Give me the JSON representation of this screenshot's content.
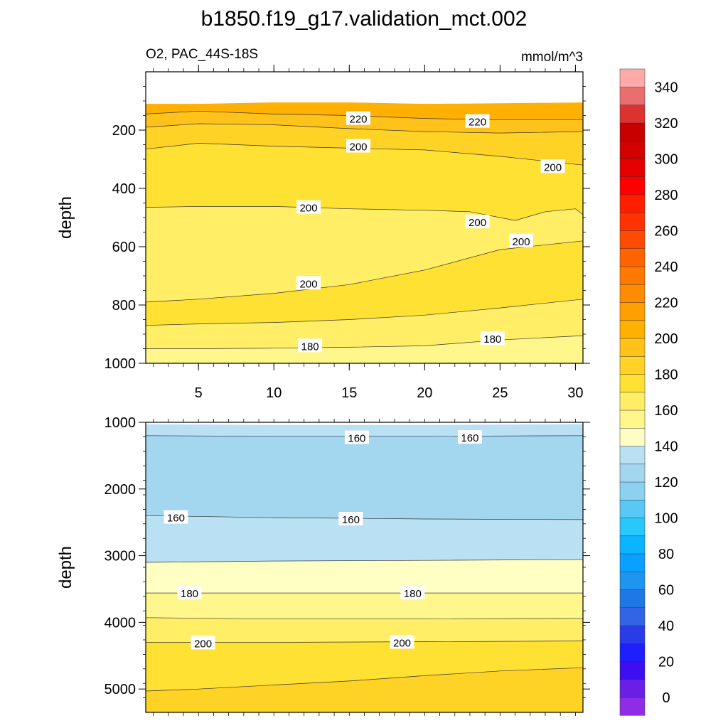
{
  "title": "b1850.f19_g17.validation_mct.002",
  "panel_left_label": "O2, PAC_44S-18S",
  "panel_right_label": "mmol/m^3",
  "chart_data": [
    {
      "type": "contour",
      "name": "upper-panel",
      "xlabel": "",
      "ylabel": "depth",
      "xlim": [
        1.5,
        30.5
      ],
      "ylim": [
        0,
        1000
      ],
      "x_ticks": [
        5,
        10,
        15,
        20,
        25,
        30
      ],
      "y_ticks": [
        200,
        400,
        600,
        800,
        1000
      ],
      "x_tick_labels": [
        "5",
        "10",
        "15",
        "20",
        "25",
        "30"
      ],
      "y_tick_labels": [
        "200",
        "400",
        "600",
        "800",
        "1000"
      ],
      "bands": [
        {
          "level": 230,
          "color": "#ffb000",
          "boundary": [
            [
              1.5,
              110
            ],
            [
              5,
              110
            ],
            [
              10,
              105
            ],
            [
              15,
              105
            ],
            [
              20,
              110
            ],
            [
              25,
              108
            ],
            [
              30.5,
              105
            ]
          ]
        },
        {
          "level": 220,
          "color": "#ffc21a",
          "boundary": [
            [
              1.5,
              145
            ],
            [
              5,
              135
            ],
            [
              10,
              145
            ],
            [
              15,
              150
            ],
            [
              20,
              160
            ],
            [
              25,
              165
            ],
            [
              30.5,
              165
            ]
          ]
        },
        {
          "level": 210,
          "color": "#ffd326",
          "boundary": [
            [
              1.5,
              190
            ],
            [
              5,
              178
            ],
            [
              10,
              182
            ],
            [
              15,
              195
            ],
            [
              20,
              205
            ],
            [
              25,
              210
            ],
            [
              30.5,
              205
            ]
          ]
        },
        {
          "level": 200,
          "color": "#ffe133",
          "boundary": [
            [
              1.5,
              265
            ],
            [
              5,
              245
            ],
            [
              10,
              255
            ],
            [
              15,
              262
            ],
            [
              20,
              268
            ],
            [
              25,
              290
            ],
            [
              30.5,
              320
            ]
          ]
        },
        {
          "level": 195,
          "color": "#ffee66",
          "boundary": [
            [
              1.5,
              465
            ],
            [
              5,
              462
            ],
            [
              10,
              462
            ],
            [
              15,
              470
            ],
            [
              20,
              475
            ],
            [
              23,
              480
            ],
            [
              26,
              510
            ],
            [
              28,
              480
            ],
            [
              30,
              470
            ],
            [
              30.5,
              490
            ]
          ]
        },
        {
          "level": 200,
          "color": "#ffe133",
          "boundary": [
            [
              1.5,
              790
            ],
            [
              5,
              780
            ],
            [
              10,
              760
            ],
            [
              15,
              730
            ],
            [
              20,
              680
            ],
            [
              25,
              610
            ],
            [
              30.5,
              580
            ]
          ]
        },
        {
          "level": 190,
          "color": "#ffee66",
          "boundary": [
            [
              1.5,
              870
            ],
            [
              5,
              865
            ],
            [
              10,
              860
            ],
            [
              15,
              850
            ],
            [
              20,
              835
            ],
            [
              25,
              810
            ],
            [
              30.5,
              780
            ]
          ]
        },
        {
          "level": 185,
          "color": "#fff78c",
          "boundary": [
            [
              1.5,
              950
            ],
            [
              5,
              950
            ],
            [
              10,
              948
            ],
            [
              15,
              945
            ],
            [
              20,
              940
            ],
            [
              25,
              920
            ],
            [
              30.5,
              905
            ]
          ]
        },
        {
          "level": 180,
          "color": "#ffffc4",
          "boundary": [
            [
              1.5,
              1000
            ],
            [
              30.5,
              1000
            ]
          ]
        }
      ],
      "contour_labels": [
        {
          "text": "220",
          "x": 15.6,
          "y": 160
        },
        {
          "text": "220",
          "x": 23.5,
          "y": 170
        },
        {
          "text": "200",
          "x": 15.6,
          "y": 255
        },
        {
          "text": "200",
          "x": 28.5,
          "y": 325
        },
        {
          "text": "200",
          "x": 12.3,
          "y": 465
        },
        {
          "text": "200",
          "x": 23.5,
          "y": 515
        },
        {
          "text": "200",
          "x": 26.4,
          "y": 580
        },
        {
          "text": "200",
          "x": 12.3,
          "y": 725
        },
        {
          "text": "180",
          "x": 12.4,
          "y": 940
        },
        {
          "text": "180",
          "x": 24.5,
          "y": 915
        }
      ]
    },
    {
      "type": "contour",
      "name": "lower-panel",
      "xlabel": "",
      "ylabel": "depth",
      "xlim": [
        1.5,
        30.5
      ],
      "ylim": [
        1000,
        5350
      ],
      "y_ticks": [
        1000,
        2000,
        3000,
        4000,
        5000
      ],
      "y_tick_labels": [
        "1000",
        "2000",
        "3000",
        "4000",
        "5000"
      ],
      "bands": [
        {
          "level": 165,
          "color": "#b9e1f3",
          "boundary": [
            [
              1.5,
              1030
            ],
            [
              10,
              1040
            ],
            [
              20,
              1040
            ],
            [
              30.5,
              1030
            ]
          ]
        },
        {
          "level": 155,
          "color": "#a3d6ef",
          "boundary": [
            [
              1.5,
              1200
            ],
            [
              10,
              1210
            ],
            [
              20,
              1210
            ],
            [
              30.5,
              1200
            ]
          ]
        },
        {
          "level": 165,
          "color": "#b9e1f3",
          "boundary": [
            [
              1.5,
              2400
            ],
            [
              10,
              2430
            ],
            [
              20,
              2450
            ],
            [
              30.5,
              2460
            ]
          ]
        },
        {
          "level": 180,
          "color": "#ffffc4",
          "boundary": [
            [
              1.5,
              3100
            ],
            [
              10,
              3080
            ],
            [
              20,
              3070
            ],
            [
              30.5,
              3060
            ]
          ]
        },
        {
          "level": 185,
          "color": "#fff78c",
          "boundary": [
            [
              1.5,
              3560
            ],
            [
              10,
              3560
            ],
            [
              20,
              3560
            ],
            [
              30.5,
              3560
            ]
          ]
        },
        {
          "level": 190,
          "color": "#ffee66",
          "boundary": [
            [
              1.5,
              3930
            ],
            [
              10,
              3950
            ],
            [
              20,
              3950
            ],
            [
              30.5,
              3940
            ]
          ]
        },
        {
          "level": 200,
          "color": "#ffe133",
          "boundary": [
            [
              1.5,
              4300
            ],
            [
              10,
              4300
            ],
            [
              20,
              4290
            ],
            [
              30.5,
              4280
            ]
          ]
        },
        {
          "level": 210,
          "color": "#ffd326",
          "boundary": [
            [
              1.5,
              5030
            ],
            [
              5,
              5000
            ],
            [
              10,
              4940
            ],
            [
              15,
              4880
            ],
            [
              20,
              4800
            ],
            [
              25,
              4730
            ],
            [
              30.5,
              4680
            ]
          ]
        }
      ],
      "contour_labels": [
        {
          "text": "160",
          "x": 15.5,
          "y": 1230
        },
        {
          "text": "160",
          "x": 23.0,
          "y": 1225
        },
        {
          "text": "160",
          "x": 3.5,
          "y": 2425
        },
        {
          "text": "160",
          "x": 15.1,
          "y": 2450
        },
        {
          "text": "180",
          "x": 4.4,
          "y": 3560
        },
        {
          "text": "180",
          "x": 19.2,
          "y": 3560
        },
        {
          "text": "200",
          "x": 5.3,
          "y": 4310
        },
        {
          "text": "200",
          "x": 18.5,
          "y": 4300
        }
      ]
    }
  ],
  "colorbar": {
    "labels": [
      "0",
      "20",
      "40",
      "60",
      "80",
      "100",
      "120",
      "140",
      "160",
      "180",
      "200",
      "220",
      "240",
      "260",
      "280",
      "300",
      "320",
      "340"
    ],
    "colors": [
      "#8e2ce6",
      "#6a1ee6",
      "#3c0ff0",
      "#1e1eff",
      "#2a3ce6",
      "#3264e6",
      "#1e78e6",
      "#1e96f0",
      "#0aa0ff",
      "#0ab4ff",
      "#28c8fa",
      "#5ac8f5",
      "#8cd2f0",
      "#a3d6ef",
      "#b9e1f3",
      "#ffffc4",
      "#fff78c",
      "#ffee66",
      "#ffe133",
      "#ffd326",
      "#ffc21a",
      "#ffb000",
      "#ffa000",
      "#ff8c00",
      "#ff7800",
      "#ff6400",
      "#ff4b00",
      "#ff3200",
      "#ff1e00",
      "#ff0000",
      "#e60000",
      "#d20000",
      "#c80000",
      "#dc3232",
      "#eb6e6e",
      "#ffaaaa"
    ]
  }
}
